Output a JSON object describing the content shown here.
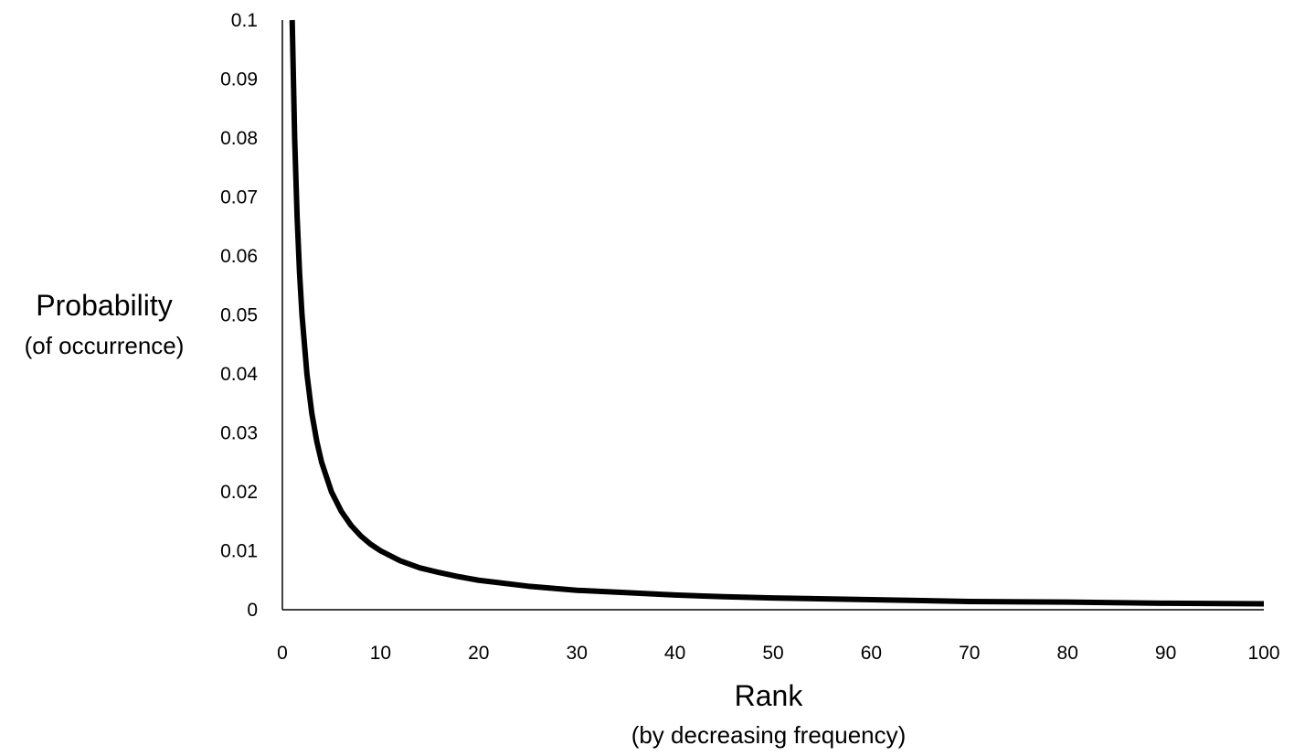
{
  "chart_data": {
    "type": "line",
    "xlabel": "Rank",
    "xlabel_sub": "(by decreasing frequency)",
    "ylabel": "Probability",
    "ylabel_sub": "(of occurrence)",
    "xlim": [
      0,
      100
    ],
    "ylim": [
      0,
      0.1
    ],
    "x_ticks": [
      "0",
      "10",
      "20",
      "30",
      "40",
      "50",
      "60",
      "70",
      "80",
      "90",
      "100"
    ],
    "y_ticks": [
      "0",
      "0.01",
      "0.02",
      "0.03",
      "0.04",
      "0.05",
      "0.06",
      "0.07",
      "0.08",
      "0.09",
      "0.1"
    ],
    "grid": false,
    "legend": "none",
    "series": [
      {
        "color": "#000000",
        "x": [
          1,
          1.25,
          1.5,
          1.75,
          2,
          2.5,
          3,
          3.5,
          4,
          5,
          6,
          7,
          8,
          9,
          10,
          12,
          14,
          16,
          18,
          20,
          25,
          30,
          35,
          40,
          45,
          50,
          60,
          70,
          80,
          90,
          100
        ],
        "y": [
          0.1,
          0.08,
          0.0667,
          0.0571,
          0.05,
          0.04,
          0.0333,
          0.0286,
          0.025,
          0.02,
          0.0167,
          0.0143,
          0.0125,
          0.0111,
          0.01,
          0.0083,
          0.0071,
          0.0063,
          0.0056,
          0.005,
          0.004,
          0.0033,
          0.0029,
          0.0025,
          0.0022,
          0.002,
          0.0017,
          0.0014,
          0.0013,
          0.0011,
          0.001
        ]
      }
    ]
  }
}
